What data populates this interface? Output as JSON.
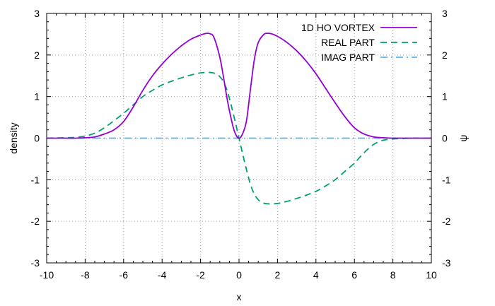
{
  "chart_data": {
    "type": "line",
    "title": "",
    "xlabel": "x",
    "ylabel": "density",
    "y2label": "ψ",
    "xlim": [
      -10,
      10
    ],
    "ylim": [
      -3,
      3
    ],
    "y2lim": [
      -3,
      3
    ],
    "grid": true,
    "legend_position": "top-right",
    "x_ticks": [
      -10,
      -8,
      -6,
      -4,
      -2,
      0,
      2,
      4,
      6,
      8,
      10
    ],
    "x_tick_labels": [
      "-10",
      "-8",
      "-6",
      "-4",
      "-2",
      "0",
      "2",
      "4",
      "6",
      "8",
      "10"
    ],
    "y_ticks": [
      -3,
      -2,
      -1,
      0,
      1,
      2,
      3
    ],
    "y_tick_labels": [
      "-3",
      "-2",
      "-1",
      "0",
      "1",
      "2",
      "3"
    ],
    "y2_tick_labels": [
      "-3",
      "-2",
      "-1",
      "0",
      "1",
      "2",
      "3"
    ],
    "series": [
      {
        "name": "1D HO VORTEX",
        "color": "#9400d3",
        "dash": "solid",
        "x": [
          -10,
          -9,
          -8.5,
          -8,
          -7.5,
          -7,
          -6.5,
          -6,
          -5.5,
          -5,
          -4.5,
          -4,
          -3.5,
          -3,
          -2.5,
          -2,
          -1.7,
          -1.5,
          -1.3,
          -1.0,
          -0.8,
          -0.6,
          -0.4,
          -0.25,
          -0.1,
          0,
          0.1,
          0.25,
          0.4,
          0.6,
          0.8,
          1.0,
          1.3,
          1.5,
          1.7,
          2,
          2.5,
          3,
          3.5,
          4,
          4.5,
          5,
          5.5,
          6,
          6.5,
          7,
          7.5,
          8,
          8.5,
          9,
          10
        ],
        "y": [
          0,
          0,
          0,
          0.01,
          0.03,
          0.1,
          0.2,
          0.4,
          0.75,
          1.15,
          1.5,
          1.78,
          2.02,
          2.22,
          2.38,
          2.48,
          2.52,
          2.51,
          2.42,
          1.95,
          1.45,
          0.9,
          0.45,
          0.18,
          0.03,
          0,
          0.03,
          0.18,
          0.45,
          1.2,
          1.9,
          2.3,
          2.5,
          2.52,
          2.51,
          2.45,
          2.3,
          2.1,
          1.85,
          1.55,
          1.2,
          0.85,
          0.52,
          0.25,
          0.1,
          0.03,
          0.01,
          0,
          0,
          0,
          0
        ]
      },
      {
        "name": "REAL PART",
        "color": "#009e73",
        "dash": "dashed",
        "x": [
          -10,
          -9,
          -8.5,
          -8,
          -7.5,
          -7,
          -6.5,
          -6,
          -5.5,
          -5,
          -4.5,
          -4,
          -3.5,
          -3,
          -2.5,
          -2,
          -1.5,
          -1.2,
          -1.0,
          -0.8,
          -0.6,
          -0.4,
          -0.2,
          0,
          0.2,
          0.4,
          0.6,
          0.8,
          1.0,
          1.2,
          1.5,
          2,
          2.5,
          3,
          3.5,
          4,
          4.5,
          5,
          5.5,
          6,
          6.5,
          7,
          7.5,
          8,
          8.5,
          9,
          10
        ],
        "y": [
          0,
          0.01,
          0.02,
          0.05,
          0.12,
          0.25,
          0.42,
          0.6,
          0.8,
          1.0,
          1.15,
          1.28,
          1.37,
          1.45,
          1.52,
          1.57,
          1.58,
          1.55,
          1.48,
          1.35,
          1.12,
          0.78,
          0.4,
          0,
          -0.4,
          -0.78,
          -1.12,
          -1.35,
          -1.48,
          -1.55,
          -1.58,
          -1.57,
          -1.52,
          -1.45,
          -1.37,
          -1.28,
          -1.15,
          -1.0,
          -0.8,
          -0.6,
          -0.35,
          -0.15,
          -0.05,
          -0.02,
          -0.01,
          0,
          0
        ]
      },
      {
        "name": "IMAG PART",
        "color": "#56b4e9",
        "dash": "dashdot",
        "x": [
          -10,
          10
        ],
        "y": [
          0,
          0
        ]
      }
    ]
  }
}
